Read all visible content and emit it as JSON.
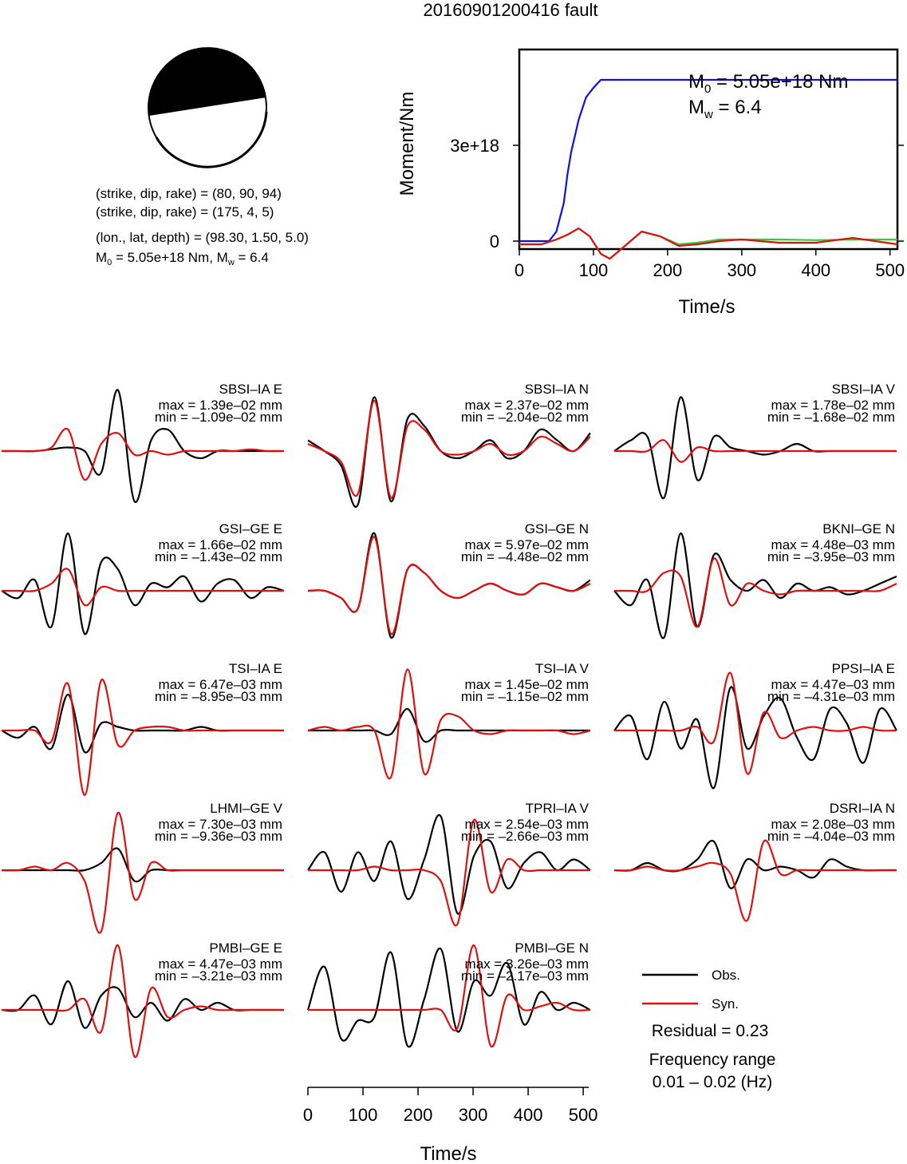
{
  "title": "20160901200416 fault",
  "mechanism": {
    "line1": "(strike, dip, rake) = (80, 90, 94)",
    "line2": "(strike, dip, rake) = (175, 4, 5)",
    "line3": "(lon., lat, depth) = (98.30, 1.50, 5.0)",
    "m0_line_prefix": "M",
    "m0_line_sub": "0",
    "m0_line_rest": " = 5.05e+18 Nm, M",
    "mw_line_sub": "w",
    "mw_line_rest": " = 6.4"
  },
  "moment_chart": {
    "type": "line",
    "ylabel": "Moment/Nm",
    "xlabel": "Time/s",
    "xlim": [
      0,
      510
    ],
    "ylim": [
      -2.5e+17,
      6e+18
    ],
    "xticks": [
      0,
      100,
      200,
      300,
      400,
      500
    ],
    "yticks": [
      {
        "value": 0,
        "label": "0"
      },
      {
        "value": 3e+18,
        "label": "3e+18"
      }
    ],
    "annot_m0_prefix": "M",
    "annot_m0_sub": "0",
    "annot_m0_rest": " = 5.05e+18 Nm",
    "annot_mw_prefix": "M",
    "annot_mw_sub": "w",
    "annot_mw_rest": " = 6.4",
    "series": [
      {
        "color": "#1010e0",
        "x": [
          0,
          40,
          50,
          60,
          65,
          70,
          80,
          90,
          100,
          110,
          510
        ],
        "y": [
          0,
          0,
          3e+17,
          1.2e+18,
          2.1e+18,
          2.8e+18,
          3.8e+18,
          4.5e+18,
          4.8e+18,
          5.05e+18,
          5.05e+18
        ]
      },
      {
        "color": "#33cc33",
        "x": [
          0,
          30,
          50,
          65,
          80,
          95,
          110,
          122,
          140,
          165,
          190,
          215,
          240,
          270,
          300,
          350,
          400,
          450,
          510
        ],
        "y": [
          -1e+17,
          -1e+17,
          5e+16,
          2e+17,
          4e+17,
          1.5e+17,
          -4e+17,
          -5.5e+17,
          -2e+17,
          3e+17,
          1.5e+17,
          -1e+17,
          -5e+16,
          5e+16,
          5e+16,
          5e+16,
          3e+16,
          5e+16,
          5e+16
        ]
      },
      {
        "color": "#dd1111",
        "x": [
          0,
          30,
          50,
          65,
          80,
          95,
          110,
          122,
          140,
          165,
          190,
          215,
          240,
          270,
          300,
          350,
          400,
          450,
          510
        ],
        "y": [
          -1e+17,
          -1e+17,
          5e+16,
          2e+17,
          4e+17,
          1.5e+17,
          -4e+17,
          -5.5e+17,
          -2e+17,
          3e+17,
          1.5e+17,
          -1.5e+17,
          -1e+17,
          0.0,
          5e+16,
          -5e+16,
          -5e+16,
          1e+17,
          -1e+17
        ]
      }
    ]
  },
  "waveforms": {
    "columns_origin": [
      0,
      384,
      768
    ],
    "rows_center": [
      565,
      740,
      915,
      1090,
      1265
    ],
    "stations": [
      {
        "name": "SBSI–IA E",
        "max": "max = 1.39e–02 mm",
        "min": "min = –1.09e–02 mm",
        "obs": [
          0,
          0,
          0,
          0.05,
          0.1,
          0,
          -0.6,
          1.7,
          -1.4,
          0.3,
          0.6,
          0,
          -0.2,
          0,
          0,
          0,
          0,
          0
        ],
        "syn": [
          0,
          0,
          0,
          0.1,
          0.6,
          -0.8,
          0.2,
          0.5,
          -0.1,
          0,
          -0.1,
          0,
          0,
          0,
          0,
          0.05,
          0,
          0
        ]
      },
      {
        "name": "SBSI–IA N",
        "max": "max = 2.37e–02 mm",
        "min": "min = –2.04e–02 mm",
        "obs": [
          0.3,
          0,
          -0.4,
          -1.5,
          1.5,
          -1.4,
          0.9,
          0.7,
          0,
          -0.2,
          0,
          0.3,
          -0.2,
          0,
          0.6,
          0.3,
          0,
          0.5
        ],
        "syn": [
          0.2,
          0,
          -0.3,
          -1.2,
          1.4,
          -1.3,
          0.7,
          0.6,
          0,
          -0.1,
          0,
          0.2,
          -0.1,
          0,
          0.4,
          0.2,
          0,
          0.4
        ]
      },
      {
        "name": "SBSI–IA V",
        "max": "max = 1.78e–02 mm",
        "min": "min = –1.68e–02 mm",
        "obs": [
          0,
          0.3,
          0.4,
          -1.3,
          1.5,
          -0.8,
          0.4,
          0.1,
          0,
          -0.1,
          0,
          0.2,
          0,
          0,
          0,
          0,
          0,
          0
        ],
        "syn": [
          0,
          0,
          0,
          0.3,
          -0.3,
          0.1,
          0,
          0,
          0,
          0,
          0,
          0,
          0,
          0,
          0,
          0,
          0,
          0
        ]
      },
      {
        "name": "GSI–GE E",
        "max": "max = 1.66e–02 mm",
        "min": "min = –1.43e–02 mm",
        "obs": [
          0,
          -0.2,
          0.3,
          -1.0,
          1.6,
          -1.2,
          0.8,
          0.6,
          -0.4,
          0.2,
          0.1,
          0.4,
          -0.3,
          0.2,
          0.3,
          -0.2,
          0.1,
          0
        ],
        "syn": [
          0,
          0,
          0,
          0.2,
          0.6,
          -0.4,
          0.1,
          0,
          0,
          0,
          0,
          0,
          0,
          0,
          0,
          0,
          0,
          0
        ]
      },
      {
        "name": "GSI–GE N",
        "max": "max = 5.97e–02 mm",
        "min": "min = –4.48e–02 mm",
        "obs": [
          0,
          0,
          -0.2,
          -0.5,
          1.6,
          -1.3,
          0.6,
          0.5,
          0,
          -0.2,
          0,
          0.2,
          0,
          -0.1,
          0.2,
          0.1,
          0,
          0.3
        ],
        "syn": [
          0,
          0,
          -0.2,
          -0.5,
          1.5,
          -1.2,
          0.6,
          0.5,
          0,
          -0.2,
          0,
          0.2,
          0,
          -0.1,
          0.2,
          0.1,
          0,
          0.2
        ]
      },
      {
        "name": "BKNI–GE N",
        "max": "max = 4.48e–03 mm",
        "min": "min = –3.95e–03 mm",
        "obs": [
          0,
          -0.4,
          0.3,
          -1.3,
          1.6,
          -1.0,
          1.0,
          0.3,
          0,
          0.3,
          -0.2,
          0.2,
          0,
          0.1,
          -0.1,
          0,
          0.2,
          0.4
        ],
        "syn": [
          0,
          0,
          0,
          0.5,
          0.4,
          -1.0,
          0.9,
          -0.4,
          0.2,
          0,
          -0.1,
          0,
          0,
          0,
          0,
          0,
          0,
          0.2
        ]
      },
      {
        "name": "TSI–IA E",
        "max": "max = 6.47e–03 mm",
        "min": "min = –8.95e–03 mm",
        "obs": [
          0,
          -0.2,
          0.1,
          -0.5,
          1.0,
          -0.6,
          0.2,
          0.1,
          0,
          0,
          0,
          0,
          0.1,
          0,
          0,
          0,
          0,
          0
        ],
        "syn": [
          0,
          0,
          0,
          -0.3,
          1.3,
          -1.8,
          1.4,
          -0.4,
          0,
          0.1,
          0.1,
          0,
          0,
          0,
          0,
          0,
          0,
          0
        ]
      },
      {
        "name": "TSI–IA V",
        "max": "max = 1.45e–02 mm",
        "min": "min = –1.15e–02 mm",
        "obs": [
          0,
          0,
          0,
          0,
          0,
          -0.1,
          0.6,
          -0.3,
          0,
          0,
          0,
          0,
          0,
          0,
          0,
          0,
          0,
          0
        ],
        "syn": [
          0,
          0.1,
          0,
          0.1,
          0,
          -1.3,
          1.7,
          -1.2,
          0.3,
          0.4,
          0,
          -0.1,
          0,
          0,
          0,
          0,
          -0.1,
          0
        ]
      },
      {
        "name": "PPSI–IA E",
        "max": "max = 4.47e–03 mm",
        "min": "min = –4.31e–03 mm",
        "obs": [
          0,
          0.4,
          -0.8,
          0.8,
          -0.5,
          0.3,
          -1.6,
          1.2,
          -0.5,
          0.4,
          0.9,
          -0.2,
          -0.8,
          0.6,
          0.2,
          -0.9,
          0.6,
          0
        ],
        "syn": [
          0,
          0,
          0,
          0,
          0,
          0.1,
          -0.3,
          1.6,
          -1.2,
          0.5,
          -0.2,
          0,
          0.1,
          0,
          0,
          0.1,
          0,
          0
        ]
      },
      {
        "name": "LHMI–GE V",
        "max": "max = 7.30e–03 mm",
        "min": "min = –9.36e–03 mm",
        "obs": [
          0,
          0,
          0,
          0,
          0,
          0,
          0.2,
          0.6,
          -0.3,
          0,
          0,
          0,
          0,
          0,
          0,
          0,
          0,
          0
        ],
        "syn": [
          0,
          0,
          0.1,
          0,
          0.2,
          -0.3,
          -1.7,
          1.6,
          -0.8,
          0.2,
          0,
          0,
          0,
          0,
          0,
          0,
          0,
          0
        ]
      },
      {
        "name": "TPRI–IA V",
        "max": "max = 2.54e–03 mm",
        "min": "min = –2.66e–03 mm",
        "obs": [
          0,
          0.5,
          -0.6,
          0.5,
          -0.3,
          0.8,
          -0.8,
          0.3,
          1.5,
          -1.2,
          0.4,
          0.8,
          -0.5,
          0.2,
          0.5,
          0,
          0.3,
          0
        ],
        "syn": [
          0,
          0,
          0,
          0,
          0.1,
          0,
          0,
          0,
          -0.3,
          -1.5,
          1.4,
          -0.6,
          0.3,
          0,
          0,
          0,
          0,
          0
        ]
      },
      {
        "name": "DSRI–IA N",
        "max": "max = 2.08e–03 mm",
        "min": "min = –4.04e–03 mm",
        "obs": [
          0,
          0,
          0.2,
          0,
          0,
          0.3,
          0.8,
          -0.5,
          0.3,
          0,
          0.1,
          0,
          -0.2,
          0.3,
          0.1,
          0,
          0,
          0
        ],
        "syn": [
          0,
          0,
          0.1,
          0,
          0,
          0.1,
          0.2,
          -0.1,
          -1.4,
          0.8,
          -0.1,
          0,
          0,
          0,
          0,
          0,
          0,
          0
        ]
      },
      {
        "name": "PMBI–GE E",
        "max": "max = 4.47e–03 mm",
        "min": "min = –3.21e–03 mm",
        "obs": [
          0,
          0,
          0.4,
          -0.4,
          0.8,
          -0.5,
          0.4,
          0.6,
          -0.2,
          0.2,
          -0.3,
          0.3,
          0,
          0.2,
          0,
          0,
          0,
          0
        ],
        "syn": [
          0,
          0,
          0,
          0,
          0,
          0.3,
          -0.6,
          1.8,
          -1.3,
          0.6,
          -0.2,
          0,
          0.1,
          0,
          0,
          0,
          0,
          0
        ]
      },
      {
        "name": "PMBI–GE N",
        "max": "max = 3.26e–03 mm",
        "min": "min = –2.17e–03 mm",
        "obs": [
          0,
          1.2,
          -0.8,
          -0.3,
          -0.2,
          1.6,
          -1.0,
          0.3,
          1.7,
          -0.6,
          0.8,
          0.4,
          1.3,
          -0.4,
          0.5,
          0,
          0.2,
          0
        ],
        "syn": [
          0,
          0,
          0,
          0,
          0,
          0,
          0,
          0,
          0,
          -0.5,
          1.8,
          -1.0,
          0.4,
          0,
          0.1,
          0.2,
          0,
          0
        ]
      }
    ]
  },
  "bottom_axis": {
    "xlabel": "Time/s",
    "xticks": [
      0,
      100,
      200,
      300,
      400,
      500
    ]
  },
  "legend": {
    "obs_label": "Obs.",
    "syn_label": "Syn.",
    "obs_color": "#000000",
    "syn_color": "#dd1111",
    "residual": "Residual = 0.23",
    "freq_label": "Frequency range",
    "freq_value": "0.01 – 0.02 (Hz)"
  }
}
